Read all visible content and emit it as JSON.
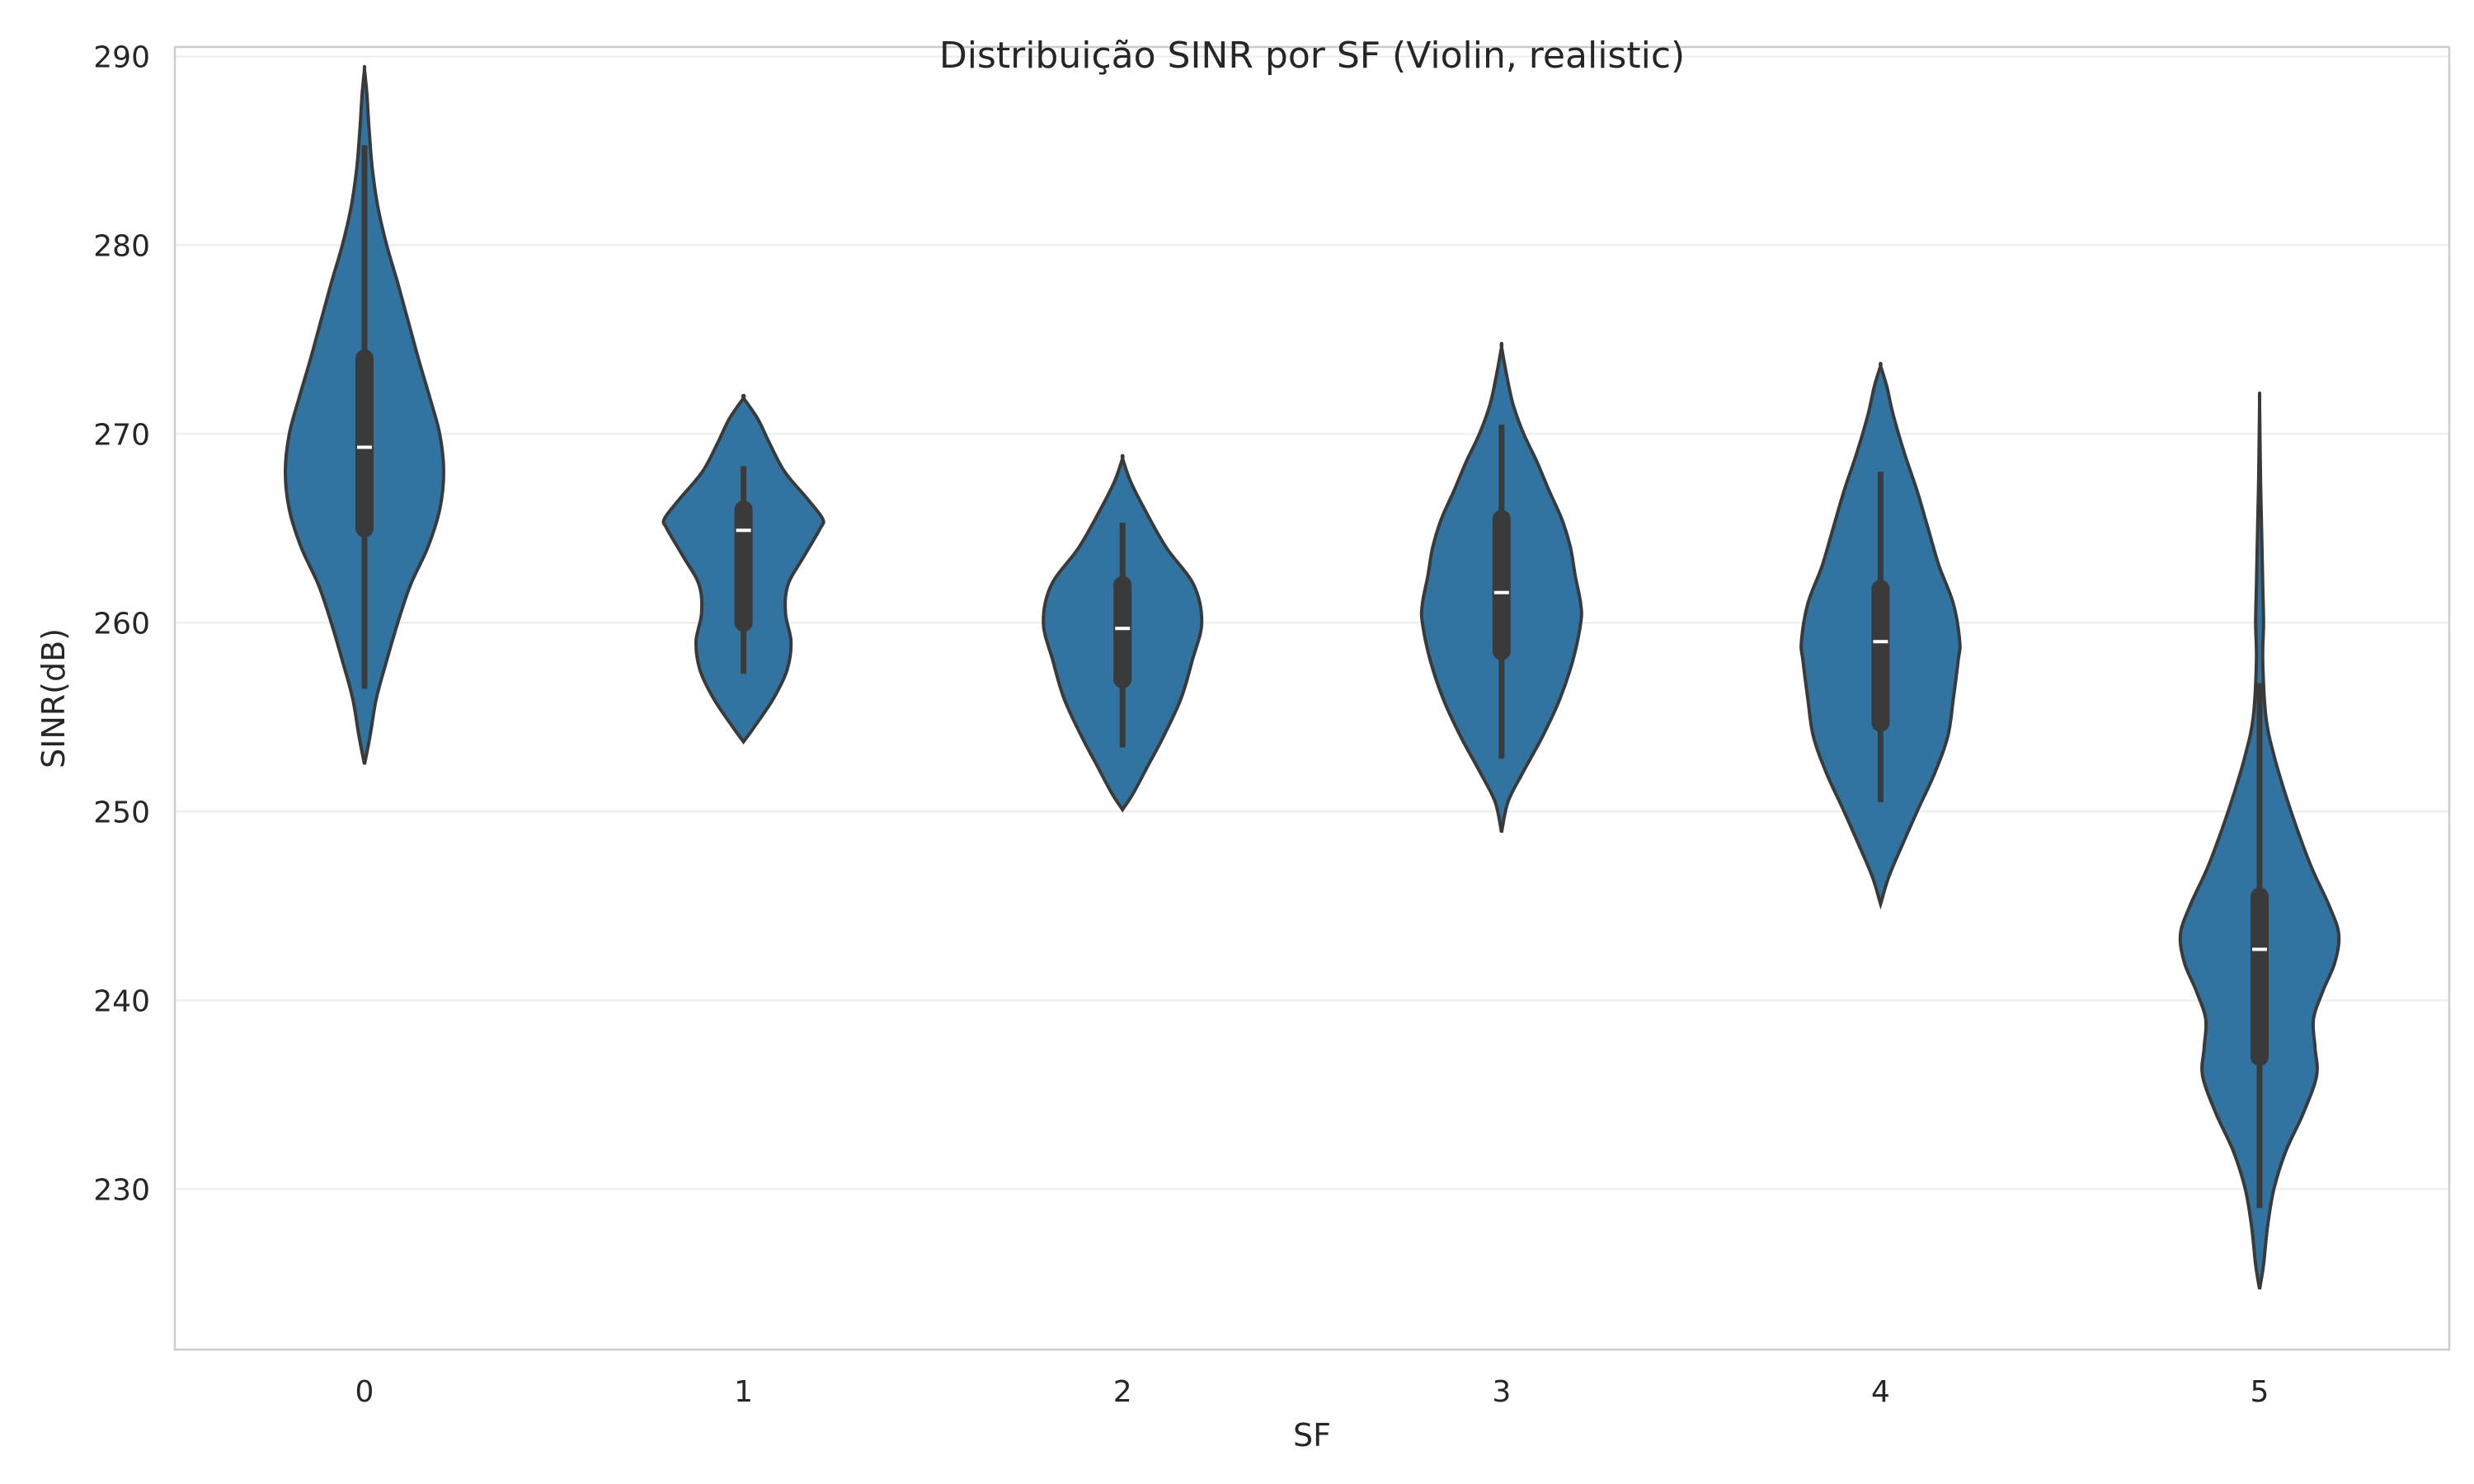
{
  "chart_data": {
    "type": "violin",
    "title": "Distribuição SINR por SF (Violin, realistic)",
    "xlabel": "SF",
    "ylabel": "SINR(dB)",
    "categories": [
      "0",
      "1",
      "2",
      "3",
      "4",
      "5"
    ],
    "ylim": [
      221.5,
      290.5
    ],
    "yticks": [
      230,
      240,
      250,
      260,
      270,
      280,
      290
    ],
    "ytick_labels": [
      "230",
      "240",
      "250",
      "260",
      "270",
      "280",
      "290"
    ],
    "grid": true,
    "fill_color": "#3274a1",
    "edge_color": "#3a3a3a",
    "violins": [
      {
        "category": "0",
        "min": 252.5,
        "max": 289.3,
        "whisker_low": 256.5,
        "whisker_high": 285.3,
        "q1": 265.0,
        "median": 269.3,
        "q3": 274.0,
        "profile": [
          [
            252.5,
            0.0
          ],
          [
            254,
            0.07
          ],
          [
            256,
            0.15
          ],
          [
            258,
            0.28
          ],
          [
            260,
            0.42
          ],
          [
            262,
            0.58
          ],
          [
            264,
            0.8
          ],
          [
            266,
            0.95
          ],
          [
            268,
            1.0
          ],
          [
            270,
            0.95
          ],
          [
            272,
            0.82
          ],
          [
            274,
            0.68
          ],
          [
            276,
            0.55
          ],
          [
            278,
            0.42
          ],
          [
            280,
            0.28
          ],
          [
            282,
            0.17
          ],
          [
            284,
            0.1
          ],
          [
            286,
            0.06
          ],
          [
            288,
            0.03
          ],
          [
            289.3,
            0.0
          ]
        ]
      },
      {
        "category": "1",
        "min": 253.7,
        "max": 271.9,
        "whisker_low": 257.3,
        "whisker_high": 268.3,
        "q1": 260.0,
        "median": 264.9,
        "q3": 266.0,
        "profile": [
          [
            253.7,
            0.0
          ],
          [
            254.5,
            0.14
          ],
          [
            256,
            0.38
          ],
          [
            257.5,
            0.55
          ],
          [
            259,
            0.6
          ],
          [
            260.5,
            0.53
          ],
          [
            262,
            0.56
          ],
          [
            263.5,
            0.76
          ],
          [
            265,
            0.97
          ],
          [
            265.5,
            1.0
          ],
          [
            266.5,
            0.82
          ],
          [
            268,
            0.52
          ],
          [
            269.5,
            0.33
          ],
          [
            270.8,
            0.18
          ],
          [
            271.9,
            0.0
          ]
        ]
      },
      {
        "category": "2",
        "min": 250.1,
        "max": 268.7,
        "whisker_low": 253.4,
        "whisker_high": 265.3,
        "q1": 257.0,
        "median": 259.7,
        "q3": 262.0,
        "profile": [
          [
            250.1,
            0.0
          ],
          [
            251,
            0.14
          ],
          [
            252.5,
            0.33
          ],
          [
            254,
            0.52
          ],
          [
            256,
            0.74
          ],
          [
            258,
            0.88
          ],
          [
            260,
            1.0
          ],
          [
            262,
            0.9
          ],
          [
            264,
            0.55
          ],
          [
            266,
            0.28
          ],
          [
            267.5,
            0.1
          ],
          [
            268.7,
            0.0
          ]
        ]
      },
      {
        "category": "3",
        "min": 248.9,
        "max": 274.6,
        "whisker_low": 252.8,
        "whisker_high": 270.5,
        "q1": 258.5,
        "median": 261.6,
        "q3": 265.5,
        "profile": [
          [
            248.9,
            0.0
          ],
          [
            250.5,
            0.08
          ],
          [
            252,
            0.26
          ],
          [
            254,
            0.52
          ],
          [
            256,
            0.74
          ],
          [
            258,
            0.9
          ],
          [
            260,
            1.0
          ],
          [
            261,
            1.0
          ],
          [
            262.5,
            0.93
          ],
          [
            264,
            0.87
          ],
          [
            265.5,
            0.76
          ],
          [
            267,
            0.6
          ],
          [
            268.5,
            0.45
          ],
          [
            270,
            0.28
          ],
          [
            271.5,
            0.15
          ],
          [
            273,
            0.07
          ],
          [
            274.6,
            0.0
          ]
        ]
      },
      {
        "category": "4",
        "min": 245.1,
        "max": 273.6,
        "whisker_low": 250.5,
        "whisker_high": 268.0,
        "q1": 254.7,
        "median": 259.0,
        "q3": 261.8,
        "profile": [
          [
            245.1,
            0.0
          ],
          [
            246.5,
            0.1
          ],
          [
            248,
            0.25
          ],
          [
            250,
            0.46
          ],
          [
            252,
            0.68
          ],
          [
            254,
            0.85
          ],
          [
            256,
            0.92
          ],
          [
            258,
            0.98
          ],
          [
            259,
            1.0
          ],
          [
            261,
            0.92
          ],
          [
            263,
            0.74
          ],
          [
            265,
            0.6
          ],
          [
            267,
            0.46
          ],
          [
            269,
            0.3
          ],
          [
            271,
            0.16
          ],
          [
            272.5,
            0.08
          ],
          [
            273.6,
            0.0
          ]
        ]
      },
      {
        "category": "5",
        "min": 224.7,
        "max": 271.7,
        "whisker_low": 229.0,
        "whisker_high": 256.8,
        "q1": 237.0,
        "median": 242.7,
        "q3": 245.5,
        "profile": [
          [
            224.7,
            0.0
          ],
          [
            226,
            0.05
          ],
          [
            228,
            0.1
          ],
          [
            230,
            0.18
          ],
          [
            232,
            0.33
          ],
          [
            234,
            0.55
          ],
          [
            236,
            0.72
          ],
          [
            237.5,
            0.7
          ],
          [
            239,
            0.68
          ],
          [
            240.5,
            0.8
          ],
          [
            242,
            0.95
          ],
          [
            243.5,
            1.0
          ],
          [
            245,
            0.88
          ],
          [
            247,
            0.66
          ],
          [
            249,
            0.48
          ],
          [
            251,
            0.32
          ],
          [
            253,
            0.18
          ],
          [
            255,
            0.08
          ],
          [
            258,
            0.04
          ],
          [
            260,
            0.05
          ],
          [
            262,
            0.04
          ],
          [
            266,
            0.02
          ],
          [
            268,
            0.01
          ],
          [
            271.7,
            0.0
          ]
        ]
      }
    ]
  }
}
